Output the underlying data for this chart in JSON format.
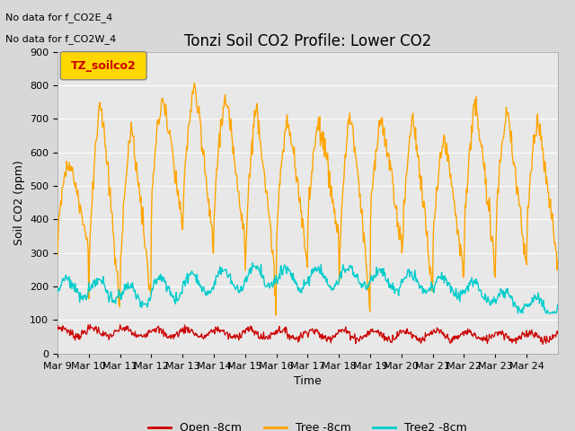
{
  "title": "Tonzi Soil CO2 Profile: Lower CO2",
  "xlabel": "Time",
  "ylabel": "Soil CO2 (ppm)",
  "ylim": [
    0,
    900
  ],
  "yticks": [
    0,
    100,
    200,
    300,
    400,
    500,
    600,
    700,
    800,
    900
  ],
  "annotations": [
    "No data for f_CO2E_4",
    "No data for f_CO2W_4"
  ],
  "legend_label": "TZ_soilco2",
  "legend_box_color": "#FFD700",
  "legend_text_color": "#CC0000",
  "series": {
    "open": {
      "label": "Open -8cm",
      "color": "#CC0000"
    },
    "tree": {
      "label": "Tree -8cm",
      "color": "#FFA500"
    },
    "tree2": {
      "label": "Tree2 -8cm",
      "color": "#00CCCC"
    }
  },
  "x_tick_labels": [
    "Mar 9",
    "Mar 10",
    "Mar 11",
    "Mar 12",
    "Mar 13",
    "Mar 14",
    "Mar 15",
    "Mar 16",
    "Mar 17",
    "Mar 18",
    "Mar 19",
    "Mar 20",
    "Mar 21",
    "Mar 22",
    "Mar 23",
    "Mar 24"
  ],
  "background_color": "#D8D8D8",
  "plot_bg_color": "#E8E8E8",
  "grid_color": "#FFFFFF",
  "title_fontsize": 12,
  "tick_fontsize": 8,
  "label_fontsize": 9,
  "annot_fontsize": 8
}
